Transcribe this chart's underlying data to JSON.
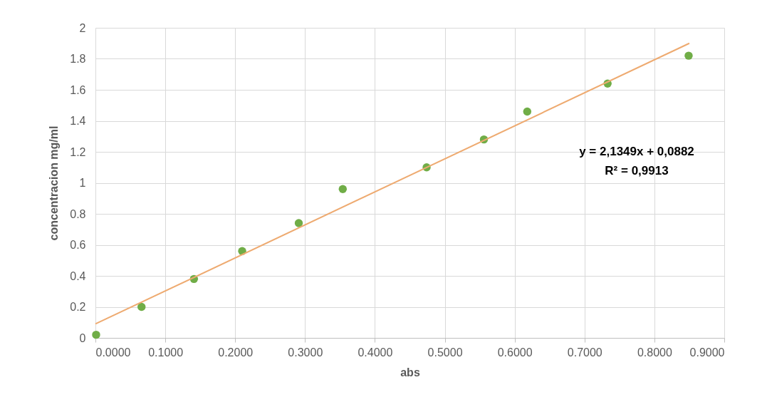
{
  "chart_data": {
    "type": "scatter",
    "xlabel": "abs",
    "ylabel": "concentracion mg/ml",
    "x": [
      0.001,
      0.066,
      0.141,
      0.21,
      0.291,
      0.354,
      0.474,
      0.556,
      0.618,
      0.733,
      0.849
    ],
    "series": [
      {
        "color": "#70ad47",
        "marker": "circle",
        "values": [
          0.02,
          0.2,
          0.38,
          0.56,
          0.74,
          0.96,
          1.1,
          1.28,
          1.46,
          1.64,
          1.82
        ]
      },
      {
        "type": "line",
        "color": "#eeaa70",
        "x": [
          0,
          0.85
        ],
        "values": [
          0.09,
          1.9
        ]
      }
    ],
    "xlim": [
      0,
      0.9
    ],
    "xticks": [
      {
        "value": 0,
        "label": "0.0000"
      },
      {
        "value": 0.1,
        "label": "0.1000"
      },
      {
        "value": 0.2,
        "label": "0.2000"
      },
      {
        "value": 0.3,
        "label": "0.3000"
      },
      {
        "value": 0.4,
        "label": "0.4000"
      },
      {
        "value": 0.5,
        "label": "0.5000"
      },
      {
        "value": 0.6,
        "label": "0.6000"
      },
      {
        "value": 0.7,
        "label": "0.7000"
      },
      {
        "value": 0.8,
        "label": "0.8000"
      },
      {
        "value": 0.9,
        "label": "0.9000"
      }
    ],
    "ylim": [
      0,
      2
    ],
    "yticks": [
      0,
      0.2,
      0.4,
      0.6,
      0.8,
      1,
      1.2,
      1.4,
      1.6,
      1.8,
      2
    ],
    "annotations": [
      "y = 2,1349x + 0,0882",
      "R² = 0,9913"
    ],
    "grid": true
  }
}
